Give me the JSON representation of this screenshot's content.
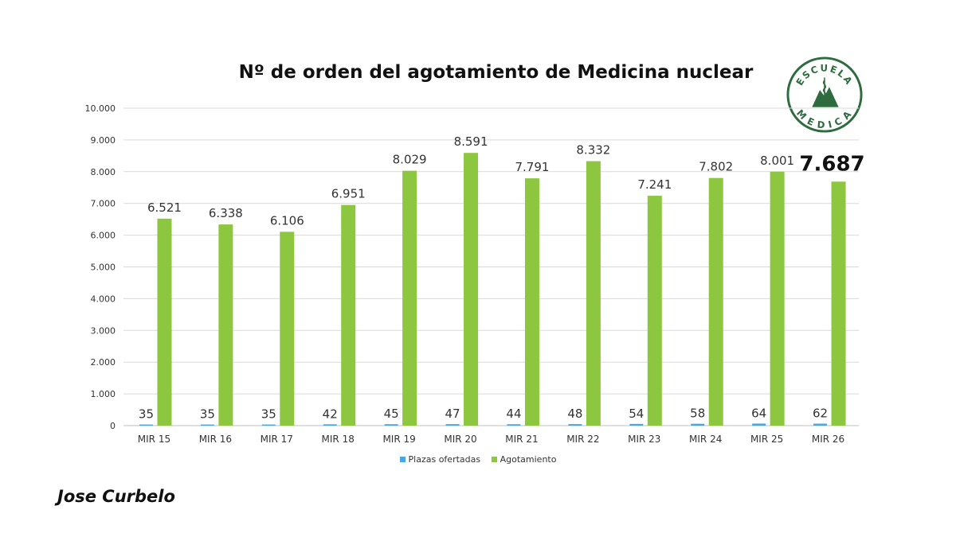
{
  "title": "Nº de orden del agotamiento de Medicina nuclear",
  "author": "Jose Curbelo",
  "logo": {
    "text_top": "ESCUELA",
    "text_bottom": "MEDICA",
    "icon": "mountain-seal-icon",
    "color": "#2e6b3e"
  },
  "colors": {
    "plazas": "#4aa6e0",
    "agotamiento": "#8dc63f",
    "grid": "#d9d9d9",
    "text": "#222222"
  },
  "legend": [
    "Plazas ofertadas",
    "Agotamiento"
  ],
  "chart_data": {
    "type": "bar",
    "categories": [
      "MIR 15",
      "MIR 16",
      "MIR 17",
      "MIR 18",
      "MIR 19",
      "MIR 20",
      "MIR 21",
      "MIR 22",
      "MIR 23",
      "MIR 24",
      "MIR 25",
      "MIR 26"
    ],
    "series": [
      {
        "name": "Plazas ofertadas",
        "values": [
          35,
          35,
          35,
          42,
          45,
          47,
          44,
          48,
          54,
          58,
          64,
          62
        ],
        "labels": [
          "35",
          "35",
          "35",
          "42",
          "45",
          "47",
          "44",
          "48",
          "54",
          "58",
          "64",
          "62"
        ]
      },
      {
        "name": "Agotamiento",
        "values": [
          6521,
          6338,
          6106,
          6951,
          8029,
          8591,
          7791,
          8332,
          7241,
          7802,
          8001,
          7687
        ],
        "labels": [
          "6.521",
          "6.338",
          "6.106",
          "6.951",
          "8.029",
          "8.591",
          "7.791",
          "8.332",
          "7.241",
          "7.802",
          "8.001",
          "7.687"
        ]
      }
    ],
    "highlighted_label": "7.687",
    "ylim": [
      0,
      10000
    ],
    "yticks": [
      0,
      1000,
      2000,
      3000,
      4000,
      5000,
      6000,
      7000,
      8000,
      9000,
      10000
    ],
    "ytick_labels": [
      "0",
      "1.000",
      "2.000",
      "3.000",
      "4.000",
      "5.000",
      "6.000",
      "7.000",
      "8.000",
      "9.000",
      "10.000"
    ],
    "grid": true,
    "legend_position": "bottom"
  }
}
